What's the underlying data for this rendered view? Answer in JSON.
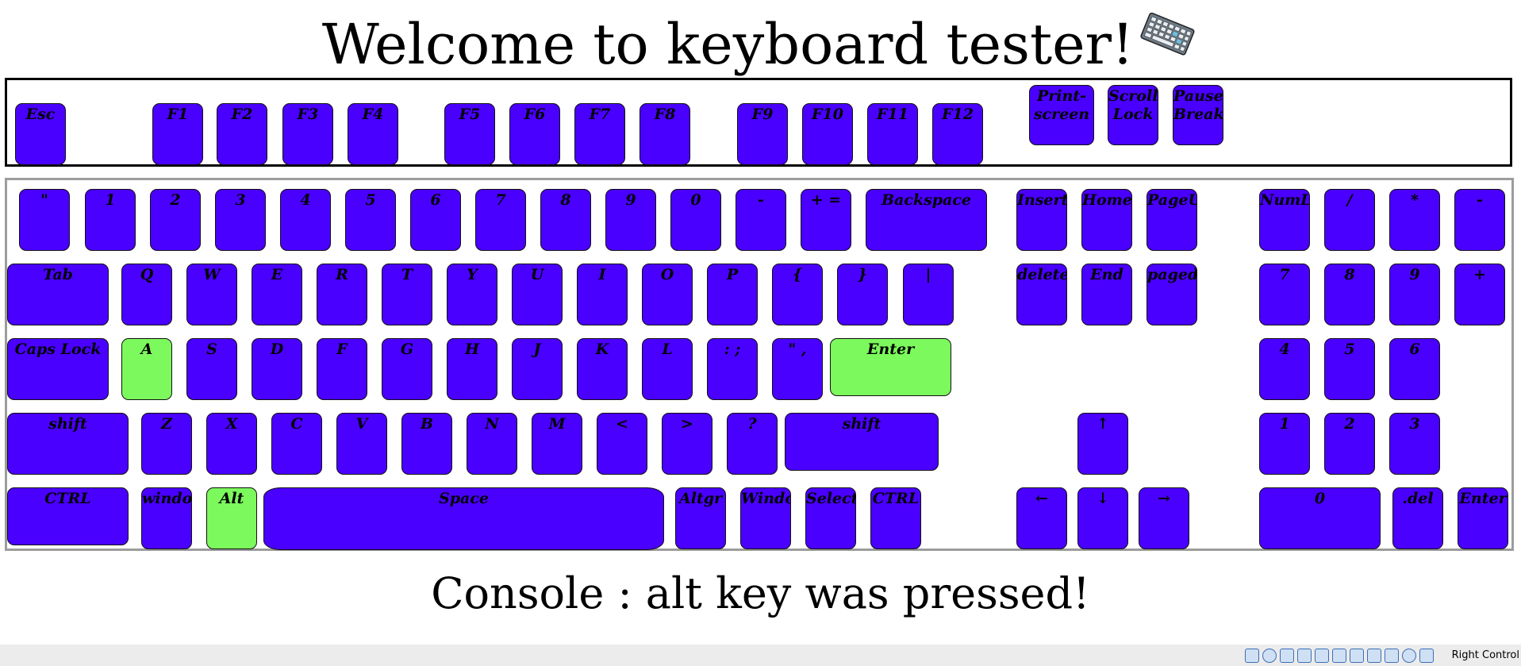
{
  "title": "Welcome to keyboard tester!",
  "title_icon": "keyboard-icon",
  "colors": {
    "key": "#4a00ff",
    "pressed": "#7cf95c"
  },
  "function_row": [
    "Esc",
    "F1",
    "F2",
    "F3",
    "F4",
    "F5",
    "F6",
    "F7",
    "F8",
    "F9",
    "F10",
    "F11",
    "F12",
    "Print-screen",
    "Scroll-Lock",
    "Pause-Break"
  ],
  "rows": {
    "number": [
      "\"",
      "1",
      "2",
      "3",
      "4",
      "5",
      "6",
      "7",
      "8",
      "9",
      "0",
      "-",
      "+ =",
      "Backspace",
      "Insert",
      "Home",
      "PageUp",
      "NumLock",
      "/",
      "*",
      "-"
    ],
    "top": [
      "Tab",
      "Q",
      "W",
      "E",
      "R",
      "T",
      "Y",
      "U",
      "I",
      "O",
      "P",
      "{",
      "}",
      "|",
      "delete",
      "End",
      "pagedown",
      "7",
      "8",
      "9",
      "+"
    ],
    "home": [
      "Caps Lock",
      "A",
      "S",
      "D",
      "F",
      "G",
      "H",
      "J",
      "K",
      "L",
      ": ;",
      "\" ,",
      "Enter",
      "4",
      "5",
      "6"
    ],
    "shift": [
      "shift",
      "Z",
      "X",
      "C",
      "V",
      "B",
      "N",
      "M",
      "<",
      ">",
      "?",
      "shift",
      "↑",
      "1",
      "2",
      "3"
    ],
    "bottom": [
      "CTRL",
      "windows",
      "Alt",
      "Space",
      "Altgr",
      "Windows",
      "Select",
      "CTRL",
      "←",
      "↓",
      "→",
      "0",
      ".del",
      "Enter"
    ]
  },
  "pressed_keys": [
    "A",
    "Enter",
    "Alt"
  ],
  "console": "Console : alt key was pressed!",
  "statusbar": {
    "host_key_label": "Right Control"
  }
}
